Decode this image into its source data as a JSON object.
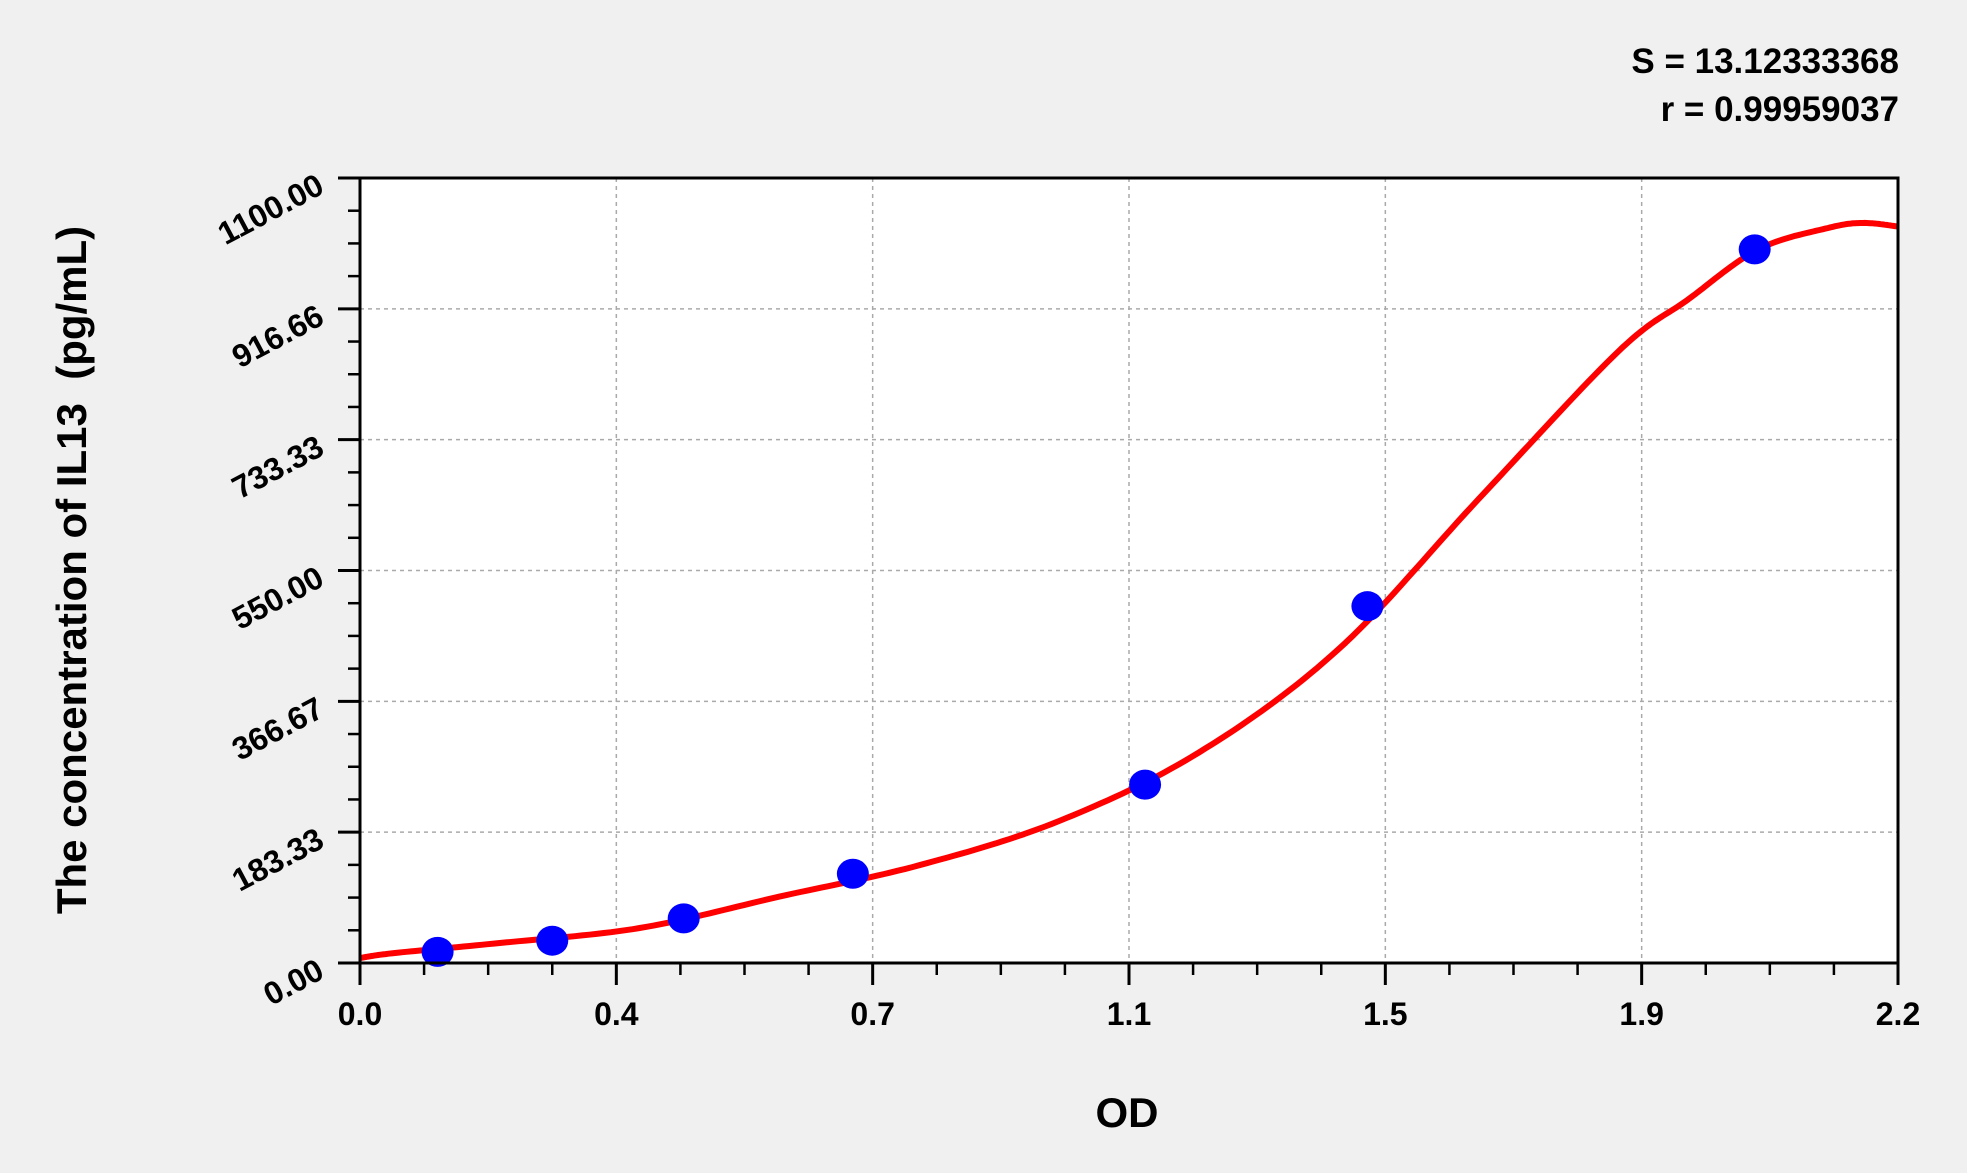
{
  "stats": {
    "s_label": "S = 13.12333368",
    "r_label": "r = 0.99959037"
  },
  "chart_data": {
    "type": "scatter",
    "xlabel": "OD",
    "ylabel": "The concentration of IL13  (pg/mL)",
    "xlim": [
      0,
      2.2
    ],
    "ylim": [
      0,
      1100
    ],
    "x_ticks": [
      "0.0",
      "0.4",
      "0.7",
      "1.1",
      "1.5",
      "1.9",
      "2.2"
    ],
    "y_ticks": [
      "0.00",
      "183.33",
      "366.67",
      "550.00",
      "733.33",
      "916.66",
      "1100.00"
    ],
    "grid": true,
    "points": {
      "color": "#0000ff",
      "x": [
        0.111,
        0.275,
        0.463,
        0.705,
        1.123,
        1.441,
        1.995
      ],
      "y": [
        15.6,
        31.25,
        62.5,
        125,
        250,
        500,
        1000
      ]
    },
    "fit_curve": {
      "color": "#ff0000",
      "x": [
        0,
        0.05,
        0.2,
        0.4,
        0.6,
        0.8,
        1.0,
        1.2,
        1.4,
        1.6,
        1.8,
        1.9,
        2.0,
        2.1,
        2.15,
        2.2
      ],
      "y": [
        7,
        14,
        28,
        49,
        93,
        137,
        199,
        295,
        440,
        650,
        857,
        930,
        1000,
        1030,
        1037,
        1032
      ]
    }
  }
}
